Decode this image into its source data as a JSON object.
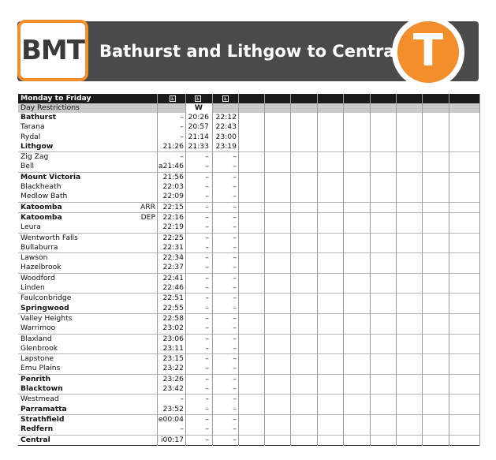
{
  "header": {
    "logo_text": "BMT",
    "title": "Bathurst and Lithgow to Central",
    "t_logo": "T",
    "colors": {
      "banner": "#4a4a4a",
      "accent": "#f28e2b"
    }
  },
  "timetable": {
    "section_label": "Monday to Friday",
    "accessible_icon": "wheelchair-icon",
    "restrictions_label": "Day Restrictions",
    "restrictions": [
      "",
      "W",
      ""
    ],
    "rows": [
      {
        "station": "Bathurst",
        "bold": true,
        "arr": "",
        "t1": "–",
        "t2": "20:26",
        "t3": "22:12",
        "sep": false
      },
      {
        "station": "Tarana",
        "bold": false,
        "arr": "",
        "t1": "–",
        "t2": "20:57",
        "t3": "22:43",
        "sep": false
      },
      {
        "station": "Rydal",
        "bold": false,
        "arr": "",
        "t1": "–",
        "t2": "21:14",
        "t3": "23:00",
        "sep": false
      },
      {
        "station": "Lithgow",
        "bold": true,
        "arr": "",
        "t1": "21:26",
        "t2": "21:33",
        "t3": "23:19",
        "sep": true
      },
      {
        "station": "Zig Zag",
        "bold": false,
        "arr": "",
        "t1": "–",
        "t2": "–",
        "t3": "–",
        "sep": false
      },
      {
        "station": "Bell",
        "bold": false,
        "arr": "",
        "t1": "a21:46",
        "t2": "–",
        "t3": "–",
        "sep": true
      },
      {
        "station": "Mount Victoria",
        "bold": true,
        "arr": "",
        "t1": "21:56",
        "t2": "–",
        "t3": "–",
        "sep": false
      },
      {
        "station": "Blackheath",
        "bold": false,
        "arr": "",
        "t1": "22:03",
        "t2": "–",
        "t3": "–",
        "sep": false
      },
      {
        "station": "Medlow Bath",
        "bold": false,
        "arr": "",
        "t1": "22:09",
        "t2": "–",
        "t3": "–",
        "sep": true
      },
      {
        "station": "Katoomba",
        "bold": true,
        "arr": "ARR",
        "t1": "22:15",
        "t2": "–",
        "t3": "–",
        "sep": true
      },
      {
        "station": "Katoomba",
        "bold": true,
        "arr": "DEP",
        "t1": "22:16",
        "t2": "–",
        "t3": "–",
        "sep": false
      },
      {
        "station": "Leura",
        "bold": false,
        "arr": "",
        "t1": "22:19",
        "t2": "–",
        "t3": "–",
        "sep": true
      },
      {
        "station": "Wentworth Falls",
        "bold": false,
        "arr": "",
        "t1": "22:25",
        "t2": "–",
        "t3": "–",
        "sep": false
      },
      {
        "station": "Bullaburra",
        "bold": false,
        "arr": "",
        "t1": "22:31",
        "t2": "–",
        "t3": "–",
        "sep": true
      },
      {
        "station": "Lawson",
        "bold": false,
        "arr": "",
        "t1": "22:34",
        "t2": "–",
        "t3": "–",
        "sep": false
      },
      {
        "station": "Hazelbrook",
        "bold": false,
        "arr": "",
        "t1": "22:37",
        "t2": "–",
        "t3": "–",
        "sep": true
      },
      {
        "station": "Woodford",
        "bold": false,
        "arr": "",
        "t1": "22:41",
        "t2": "–",
        "t3": "–",
        "sep": false
      },
      {
        "station": "Linden",
        "bold": false,
        "arr": "",
        "t1": "22:46",
        "t2": "–",
        "t3": "–",
        "sep": true
      },
      {
        "station": "Faulconbridge",
        "bold": false,
        "arr": "",
        "t1": "22:51",
        "t2": "–",
        "t3": "–",
        "sep": false
      },
      {
        "station": "Springwood",
        "bold": true,
        "arr": "",
        "t1": "22:55",
        "t2": "–",
        "t3": "–",
        "sep": true
      },
      {
        "station": "Valley Heights",
        "bold": false,
        "arr": "",
        "t1": "22:58",
        "t2": "–",
        "t3": "–",
        "sep": false
      },
      {
        "station": "Warrimoo",
        "bold": false,
        "arr": "",
        "t1": "23:02",
        "t2": "–",
        "t3": "–",
        "sep": true
      },
      {
        "station": "Blaxland",
        "bold": false,
        "arr": "",
        "t1": "23:06",
        "t2": "–",
        "t3": "–",
        "sep": false
      },
      {
        "station": "Glenbrook",
        "bold": false,
        "arr": "",
        "t1": "23:11",
        "t2": "–",
        "t3": "–",
        "sep": true
      },
      {
        "station": "Lapstone",
        "bold": false,
        "arr": "",
        "t1": "23:15",
        "t2": "–",
        "t3": "–",
        "sep": false
      },
      {
        "station": "Emu Plains",
        "bold": false,
        "arr": "",
        "t1": "23:22",
        "t2": "–",
        "t3": "–",
        "sep": true
      },
      {
        "station": "Penrith",
        "bold": true,
        "arr": "",
        "t1": "23:26",
        "t2": "–",
        "t3": "–",
        "sep": false
      },
      {
        "station": "Blacktown",
        "bold": true,
        "arr": "",
        "t1": "23:42",
        "t2": "–",
        "t3": "–",
        "sep": true
      },
      {
        "station": "Westmead",
        "bold": false,
        "arr": "",
        "t1": "–",
        "t2": "–",
        "t3": "–",
        "sep": false
      },
      {
        "station": "Parramatta",
        "bold": true,
        "arr": "",
        "t1": "23:52",
        "t2": "–",
        "t3": "–",
        "sep": true
      },
      {
        "station": "Strathfield",
        "bold": true,
        "arr": "",
        "t1": "e00:04",
        "t2": "–",
        "t3": "–",
        "sep": false
      },
      {
        "station": "Redfern",
        "bold": true,
        "arr": "",
        "t1": "–",
        "t2": "–",
        "t3": "–",
        "sep": true
      },
      {
        "station": "Central",
        "bold": true,
        "arr": "",
        "t1": "i00:17",
        "t2": "–",
        "t3": "–",
        "sep": false
      }
    ]
  }
}
